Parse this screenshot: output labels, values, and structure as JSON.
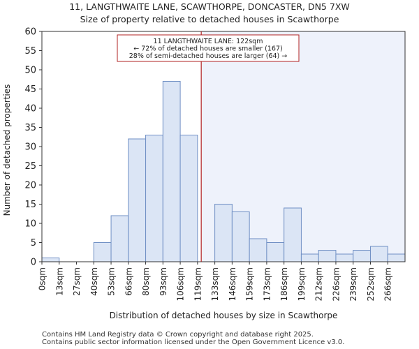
{
  "chart_data": {
    "type": "bar",
    "title": "11, LANGTHWAITE LANE, SCAWTHORPE, DONCASTER, DN5 7XW",
    "subtitle": "Size of property relative to detached houses in Scawthorpe",
    "xlabel": "Distribution of detached houses by size in Scawthorpe",
    "ylabel": "Number of detached properties",
    "x_tick_labels": [
      "0sqm",
      "13sqm",
      "27sqm",
      "40sqm",
      "53sqm",
      "66sqm",
      "80sqm",
      "93sqm",
      "106sqm",
      "119sqm",
      "133sqm",
      "146sqm",
      "159sqm",
      "173sqm",
      "186sqm",
      "199sqm",
      "212sqm",
      "226sqm",
      "239sqm",
      "252sqm",
      "266sqm"
    ],
    "y_ticks": [
      0,
      5,
      10,
      15,
      20,
      25,
      30,
      35,
      40,
      45,
      50,
      55,
      60
    ],
    "ylim": [
      0,
      60
    ],
    "values": [
      1,
      0,
      0,
      5,
      12,
      32,
      33,
      47,
      33,
      0,
      15,
      13,
      6,
      5,
      14,
      2,
      3,
      2,
      3,
      4,
      2
    ],
    "property_marker": {
      "value_sqm": 122,
      "label_lines": [
        "11 LANGTHWAITE LANE: 122sqm",
        "← 72% of detached houses are smaller (167)",
        "28% of semi-detached houses are larger (64) →"
      ]
    },
    "colors": {
      "bar_fill": "#dbe5f5",
      "bar_stroke": "#6f8fc4",
      "highlight_region": "#eef2fb",
      "marker_line": "#b22222",
      "annotation_border": "#b22222"
    },
    "grid": false
  },
  "footer": {
    "line1": "Contains HM Land Registry data © Crown copyright and database right 2025.",
    "line2": "Contains public sector information licensed under the Open Government Licence v3.0."
  }
}
